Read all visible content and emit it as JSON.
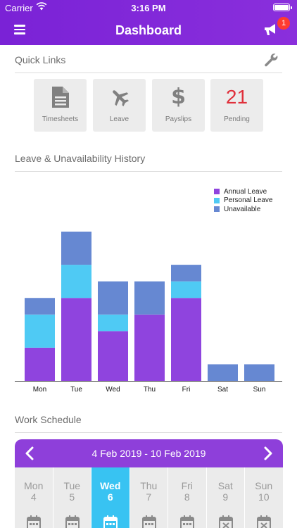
{
  "status_bar": {
    "carrier": "Carrier",
    "time": "3:16 PM"
  },
  "nav": {
    "title": "Dashboard",
    "notification_count": "1"
  },
  "quick_links": {
    "title": "Quick Links",
    "tiles": [
      {
        "label": "Timesheets",
        "icon": "document-icon"
      },
      {
        "label": "Leave",
        "icon": "airplane-icon"
      },
      {
        "label": "Payslips",
        "icon": "dollar-icon"
      },
      {
        "label": "Pending",
        "count": "21"
      }
    ]
  },
  "leave_history": {
    "title": "Leave & Unavailability History"
  },
  "colors": {
    "header": "#7a22d6",
    "annual_leave": "#8f44de",
    "personal_leave": "#4fcaf4",
    "unavailable": "#6688d2",
    "selected_day": "#38c3f2",
    "week_bar": "#8e3fda",
    "pending_count": "#e0303b"
  },
  "chart_data": {
    "type": "bar",
    "stacked": true,
    "categories": [
      "Mon",
      "Tue",
      "Wed",
      "Thu",
      "Fri",
      "Sat",
      "Sun"
    ],
    "series": [
      {
        "name": "Annual Leave",
        "values": [
          2,
          5,
          3,
          4,
          5,
          0,
          0
        ]
      },
      {
        "name": "Personal Leave",
        "values": [
          2,
          2,
          1,
          0,
          1,
          0,
          0
        ]
      },
      {
        "name": "Unavailable",
        "values": [
          1,
          2,
          2,
          2,
          1,
          1,
          1
        ]
      }
    ],
    "ylim": [
      0,
      9
    ],
    "legend_position": "top-right",
    "grid": false
  },
  "work_schedule": {
    "title": "Work Schedule",
    "range": "4 Feb 2019 - 10 Feb 2019",
    "days": [
      {
        "name": "Mon",
        "num": "4",
        "selected": false,
        "status": "calendar-icon"
      },
      {
        "name": "Tue",
        "num": "5",
        "selected": false,
        "status": "calendar-icon"
      },
      {
        "name": "Wed",
        "num": "6",
        "selected": true,
        "status": "calendar-icon"
      },
      {
        "name": "Thu",
        "num": "7",
        "selected": false,
        "status": "calendar-icon"
      },
      {
        "name": "Fri",
        "num": "8",
        "selected": false,
        "status": "calendar-icon"
      },
      {
        "name": "Sat",
        "num": "9",
        "selected": false,
        "status": "calendar-x-icon"
      },
      {
        "name": "Sun",
        "num": "10",
        "selected": false,
        "status": "calendar-x-icon"
      }
    ]
  }
}
